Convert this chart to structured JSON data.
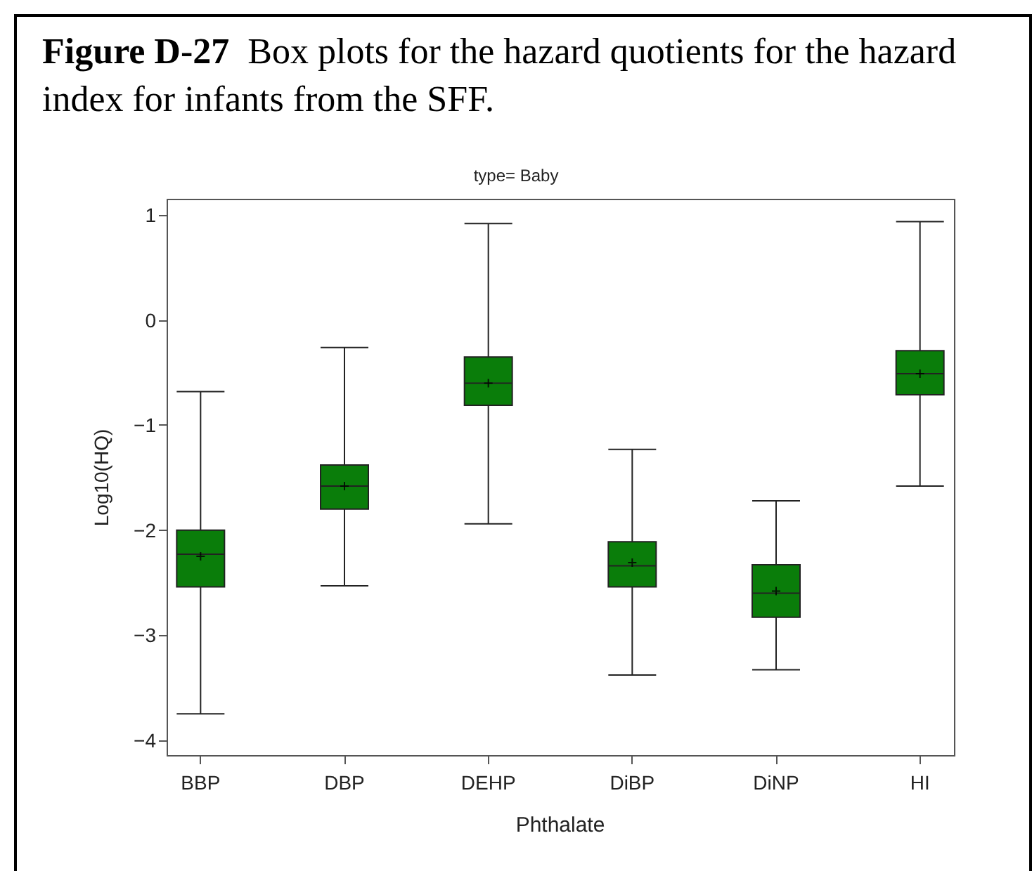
{
  "chart_data": {
    "type": "box",
    "title": "Figure D-27  Box plots for the hazard quotients for the hazard index for infants from the SFF.",
    "subtitle": "type= Baby",
    "xlabel": "Phthalate",
    "ylabel": "Log10(HQ)",
    "categories": [
      "BBP",
      "DBP",
      "DEHP",
      "DiBP",
      "DiNP",
      "HI"
    ],
    "color": "#0a7d0a",
    "boxes": [
      {
        "low": -3.75,
        "q1": -2.54,
        "median": -2.23,
        "q3": -2.0,
        "high": -0.68,
        "mean": -2.25
      },
      {
        "low": -2.53,
        "q1": -1.8,
        "median": -1.58,
        "q3": -1.38,
        "high": -0.26,
        "mean": -1.58
      },
      {
        "low": -1.94,
        "q1": -0.81,
        "median": -0.6,
        "q3": -0.35,
        "high": 0.92,
        "mean": -0.6
      },
      {
        "low": -3.38,
        "q1": -2.54,
        "median": -2.34,
        "q3": -2.11,
        "high": -1.23,
        "mean": -2.31
      },
      {
        "low": -3.33,
        "q1": -2.83,
        "median": -2.6,
        "q3": -2.33,
        "high": -1.72,
        "mean": -2.58
      },
      {
        "low": -1.58,
        "q1": -0.71,
        "median": -0.51,
        "q3": -0.29,
        "high": 0.94,
        "mean": -0.51
      }
    ],
    "ylim": [
      -4.15,
      1.15
    ],
    "yticks": [
      -4,
      -3,
      -2,
      -1,
      0,
      1
    ],
    "grid": false
  }
}
